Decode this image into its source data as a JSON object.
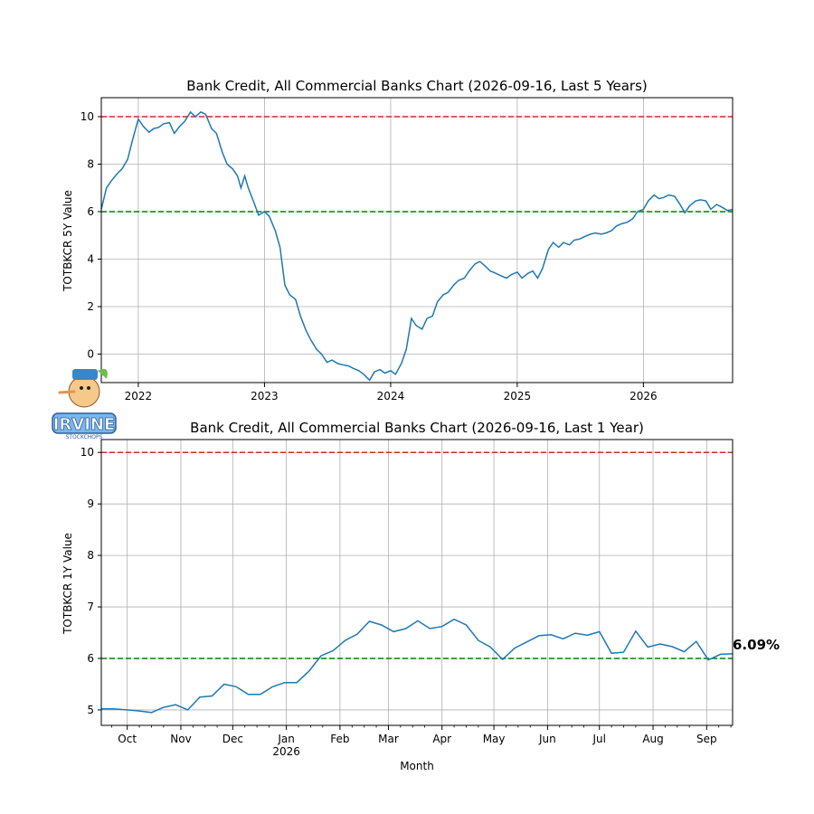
{
  "logo": {
    "text": "IRVINE",
    "subtext": "STOCKCHOPS",
    "icon": "pinocchio-mascot-logo"
  },
  "chart_data": [
    {
      "type": "line",
      "title": "Bank Credit, All Commercial Banks Chart (2026-09-16, Last 5 Years)",
      "xlabel": "",
      "ylabel": "TOTBKCR 5Y Value",
      "xlim": [
        "2021-09-16",
        "2026-09-16"
      ],
      "ylim": [
        -1.2,
        10.8
      ],
      "x_ticks": [
        {
          "date": "2022-01-01",
          "label": "2022"
        },
        {
          "date": "2023-01-01",
          "label": "2023"
        },
        {
          "date": "2024-01-01",
          "label": "2024"
        },
        {
          "date": "2025-01-01",
          "label": "2025"
        },
        {
          "date": "2026-01-01",
          "label": "2026"
        }
      ],
      "y_ticks": [
        0,
        2,
        4,
        6,
        8,
        10
      ],
      "grid": true,
      "reference_lines": [
        {
          "y": 10,
          "color": "#d62728",
          "style": "dashed"
        },
        {
          "y": 6,
          "color": "#008000",
          "style": "dashed"
        }
      ],
      "series": [
        {
          "color": "#1f77b4",
          "points": [
            [
              "2021-09-16",
              6.1
            ],
            [
              "2021-10-01",
              7.0
            ],
            [
              "2021-10-15",
              7.3
            ],
            [
              "2021-11-01",
              7.6
            ],
            [
              "2021-11-15",
              7.8
            ],
            [
              "2021-12-01",
              8.2
            ],
            [
              "2021-12-15",
              9.0
            ],
            [
              "2022-01-01",
              9.9
            ],
            [
              "2022-01-15",
              9.6
            ],
            [
              "2022-02-01",
              9.35
            ],
            [
              "2022-02-15",
              9.5
            ],
            [
              "2022-03-01",
              9.55
            ],
            [
              "2022-03-15",
              9.7
            ],
            [
              "2022-04-01",
              9.75
            ],
            [
              "2022-04-15",
              9.3
            ],
            [
              "2022-05-01",
              9.6
            ],
            [
              "2022-05-15",
              9.8
            ],
            [
              "2022-06-01",
              10.2
            ],
            [
              "2022-06-15",
              10.0
            ],
            [
              "2022-07-01",
              10.2
            ],
            [
              "2022-07-15",
              10.1
            ],
            [
              "2022-08-01",
              9.5
            ],
            [
              "2022-08-15",
              9.3
            ],
            [
              "2022-09-01",
              8.5
            ],
            [
              "2022-09-15",
              8.0
            ],
            [
              "2022-10-01",
              7.8
            ],
            [
              "2022-10-15",
              7.5
            ],
            [
              "2022-10-25",
              7.0
            ],
            [
              "2022-11-05",
              7.5
            ],
            [
              "2022-11-15",
              7.0
            ],
            [
              "2022-12-01",
              6.4
            ],
            [
              "2022-12-15",
              5.85
            ],
            [
              "2023-01-01",
              6.0
            ],
            [
              "2023-01-15",
              5.8
            ],
            [
              "2023-02-01",
              5.2
            ],
            [
              "2023-02-15",
              4.5
            ],
            [
              "2023-03-01",
              2.9
            ],
            [
              "2023-03-15",
              2.5
            ],
            [
              "2023-04-01",
              2.3
            ],
            [
              "2023-04-15",
              1.6
            ],
            [
              "2023-05-01",
              1.0
            ],
            [
              "2023-05-15",
              0.6
            ],
            [
              "2023-06-01",
              0.2
            ],
            [
              "2023-06-15",
              0.0
            ],
            [
              "2023-07-01",
              -0.35
            ],
            [
              "2023-07-15",
              -0.25
            ],
            [
              "2023-08-01",
              -0.4
            ],
            [
              "2023-08-15",
              -0.45
            ],
            [
              "2023-09-01",
              -0.5
            ],
            [
              "2023-09-15",
              -0.6
            ],
            [
              "2023-10-01",
              -0.7
            ],
            [
              "2023-10-15",
              -0.85
            ],
            [
              "2023-11-01",
              -1.1
            ],
            [
              "2023-11-15",
              -0.75
            ],
            [
              "2023-12-01",
              -0.65
            ],
            [
              "2023-12-15",
              -0.8
            ],
            [
              "2024-01-01",
              -0.7
            ],
            [
              "2024-01-15",
              -0.85
            ],
            [
              "2024-02-01",
              -0.4
            ],
            [
              "2024-02-15",
              0.2
            ],
            [
              "2024-03-01",
              1.5
            ],
            [
              "2024-03-15",
              1.2
            ],
            [
              "2024-04-01",
              1.05
            ],
            [
              "2024-04-15",
              1.5
            ],
            [
              "2024-05-01",
              1.6
            ],
            [
              "2024-05-15",
              2.2
            ],
            [
              "2024-06-01",
              2.5
            ],
            [
              "2024-06-15",
              2.6
            ],
            [
              "2024-07-01",
              2.9
            ],
            [
              "2024-07-15",
              3.1
            ],
            [
              "2024-08-01",
              3.2
            ],
            [
              "2024-08-15",
              3.5
            ],
            [
              "2024-09-01",
              3.8
            ],
            [
              "2024-09-15",
              3.9
            ],
            [
              "2024-10-01",
              3.7
            ],
            [
              "2024-10-15",
              3.5
            ],
            [
              "2024-11-01",
              3.4
            ],
            [
              "2024-11-15",
              3.3
            ],
            [
              "2024-12-01",
              3.2
            ],
            [
              "2024-12-15",
              3.35
            ],
            [
              "2025-01-01",
              3.45
            ],
            [
              "2025-01-15",
              3.2
            ],
            [
              "2025-02-01",
              3.4
            ],
            [
              "2025-02-15",
              3.5
            ],
            [
              "2025-03-01",
              3.2
            ],
            [
              "2025-03-15",
              3.6
            ],
            [
              "2025-04-01",
              4.4
            ],
            [
              "2025-04-15",
              4.7
            ],
            [
              "2025-05-01",
              4.5
            ],
            [
              "2025-05-15",
              4.7
            ],
            [
              "2025-06-01",
              4.6
            ],
            [
              "2025-06-15",
              4.8
            ],
            [
              "2025-07-01",
              4.85
            ],
            [
              "2025-07-15",
              4.95
            ],
            [
              "2025-08-01",
              5.05
            ],
            [
              "2025-08-15",
              5.1
            ],
            [
              "2025-09-01",
              5.05
            ],
            [
              "2025-09-15",
              5.1
            ],
            [
              "2025-10-01",
              5.2
            ],
            [
              "2025-10-15",
              5.4
            ],
            [
              "2025-11-01",
              5.5
            ],
            [
              "2025-11-15",
              5.55
            ],
            [
              "2025-12-01",
              5.7
            ],
            [
              "2025-12-15",
              6.0
            ],
            [
              "2026-01-01",
              6.1
            ],
            [
              "2026-01-15",
              6.45
            ],
            [
              "2026-02-01",
              6.7
            ],
            [
              "2026-02-15",
              6.55
            ],
            [
              "2026-03-01",
              6.6
            ],
            [
              "2026-03-15",
              6.7
            ],
            [
              "2026-04-01",
              6.65
            ],
            [
              "2026-04-15",
              6.35
            ],
            [
              "2026-05-01",
              5.95
            ],
            [
              "2026-05-15",
              6.25
            ],
            [
              "2026-06-01",
              6.45
            ],
            [
              "2026-06-15",
              6.5
            ],
            [
              "2026-07-01",
              6.45
            ],
            [
              "2026-07-15",
              6.1
            ],
            [
              "2026-08-01",
              6.3
            ],
            [
              "2026-08-15",
              6.2
            ],
            [
              "2026-09-01",
              6.05
            ],
            [
              "2026-09-16",
              6.09
            ]
          ]
        }
      ]
    },
    {
      "type": "line",
      "title": "Bank Credit, All Commercial Banks Chart (2026-09-16, Last 1 Year)",
      "xlabel": "Month",
      "ylabel": "TOTBKCR 1Y Value",
      "xlim": [
        "2025-09-16",
        "2026-09-16"
      ],
      "ylim": [
        4.7,
        10.25
      ],
      "x_ticks": [
        {
          "date": "2025-10-01",
          "label": "Oct"
        },
        {
          "date": "2025-11-01",
          "label": "Nov"
        },
        {
          "date": "2025-12-01",
          "label": "Dec"
        },
        {
          "date": "2026-01-01",
          "label": "Jan",
          "sublabel": "2026"
        },
        {
          "date": "2026-02-01",
          "label": "Feb"
        },
        {
          "date": "2026-03-01",
          "label": "Mar"
        },
        {
          "date": "2026-04-01",
          "label": "Apr"
        },
        {
          "date": "2026-05-01",
          "label": "May"
        },
        {
          "date": "2026-06-01",
          "label": "Jun"
        },
        {
          "date": "2026-07-01",
          "label": "Jul"
        },
        {
          "date": "2026-08-01",
          "label": "Aug"
        },
        {
          "date": "2026-09-01",
          "label": "Sep"
        }
      ],
      "y_ticks": [
        5,
        6,
        7,
        8,
        9,
        10
      ],
      "grid": true,
      "reference_lines": [
        {
          "y": 10,
          "color": "#d62728",
          "style": "dashed"
        },
        {
          "y": 6,
          "color": "#008000",
          "style": "dashed"
        }
      ],
      "last_value_label": "6.09%",
      "series": [
        {
          "color": "#1f77b4",
          "points": [
            [
              "2025-09-16",
              5.02
            ],
            [
              "2025-09-23",
              5.02
            ],
            [
              "2025-10-01",
              5.0
            ],
            [
              "2025-10-08",
              4.98
            ],
            [
              "2025-10-15",
              4.95
            ],
            [
              "2025-10-22",
              5.05
            ],
            [
              "2025-10-29",
              5.1
            ],
            [
              "2025-11-05",
              5.0
            ],
            [
              "2025-11-12",
              5.25
            ],
            [
              "2025-11-19",
              5.27
            ],
            [
              "2025-11-26",
              5.5
            ],
            [
              "2025-12-03",
              5.45
            ],
            [
              "2025-12-10",
              5.3
            ],
            [
              "2025-12-17",
              5.3
            ],
            [
              "2025-12-24",
              5.45
            ],
            [
              "2025-12-31",
              5.53
            ],
            [
              "2026-01-07",
              5.53
            ],
            [
              "2026-01-14",
              5.75
            ],
            [
              "2026-01-21",
              6.05
            ],
            [
              "2026-01-28",
              6.15
            ],
            [
              "2026-02-04",
              6.35
            ],
            [
              "2026-02-11",
              6.47
            ],
            [
              "2026-02-18",
              6.72
            ],
            [
              "2026-02-25",
              6.65
            ],
            [
              "2026-03-04",
              6.52
            ],
            [
              "2026-03-11",
              6.58
            ],
            [
              "2026-03-18",
              6.73
            ],
            [
              "2026-03-25",
              6.58
            ],
            [
              "2026-04-01",
              6.62
            ],
            [
              "2026-04-08",
              6.76
            ],
            [
              "2026-04-15",
              6.65
            ],
            [
              "2026-04-22",
              6.35
            ],
            [
              "2026-04-29",
              6.22
            ],
            [
              "2026-05-06",
              5.98
            ],
            [
              "2026-05-13",
              6.2
            ],
            [
              "2026-05-20",
              6.32
            ],
            [
              "2026-05-27",
              6.44
            ],
            [
              "2026-06-03",
              6.46
            ],
            [
              "2026-06-10",
              6.38
            ],
            [
              "2026-06-17",
              6.49
            ],
            [
              "2026-06-24",
              6.45
            ],
            [
              "2026-07-01",
              6.52
            ],
            [
              "2026-07-08",
              6.1
            ],
            [
              "2026-07-15",
              6.12
            ],
            [
              "2026-07-22",
              6.53
            ],
            [
              "2026-07-29",
              6.22
            ],
            [
              "2026-08-05",
              6.28
            ],
            [
              "2026-08-12",
              6.23
            ],
            [
              "2026-08-19",
              6.13
            ],
            [
              "2026-08-26",
              6.33
            ],
            [
              "2026-09-02",
              5.97
            ],
            [
              "2026-09-09",
              6.08
            ],
            [
              "2026-09-16",
              6.09
            ]
          ]
        }
      ]
    }
  ]
}
